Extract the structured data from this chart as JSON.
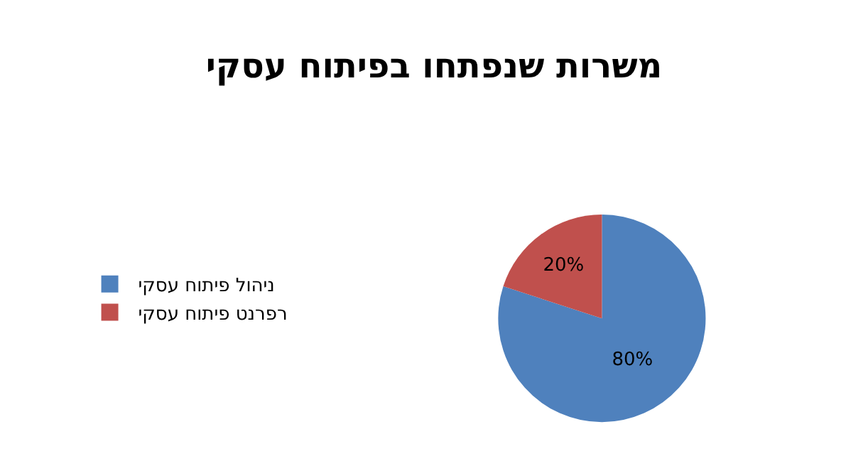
{
  "chart_data": {
    "type": "pie",
    "title": "משרות שנפתחו בפיתוח עסקי",
    "categories": [
      "ניהול פיתוח עסקי",
      "רפרנט פיתוח עסקי"
    ],
    "values": [
      80,
      20
    ],
    "colors": [
      "#4f81bd",
      "#c0504d"
    ],
    "value_labels": [
      "80%",
      "20%"
    ],
    "legend": "left"
  }
}
